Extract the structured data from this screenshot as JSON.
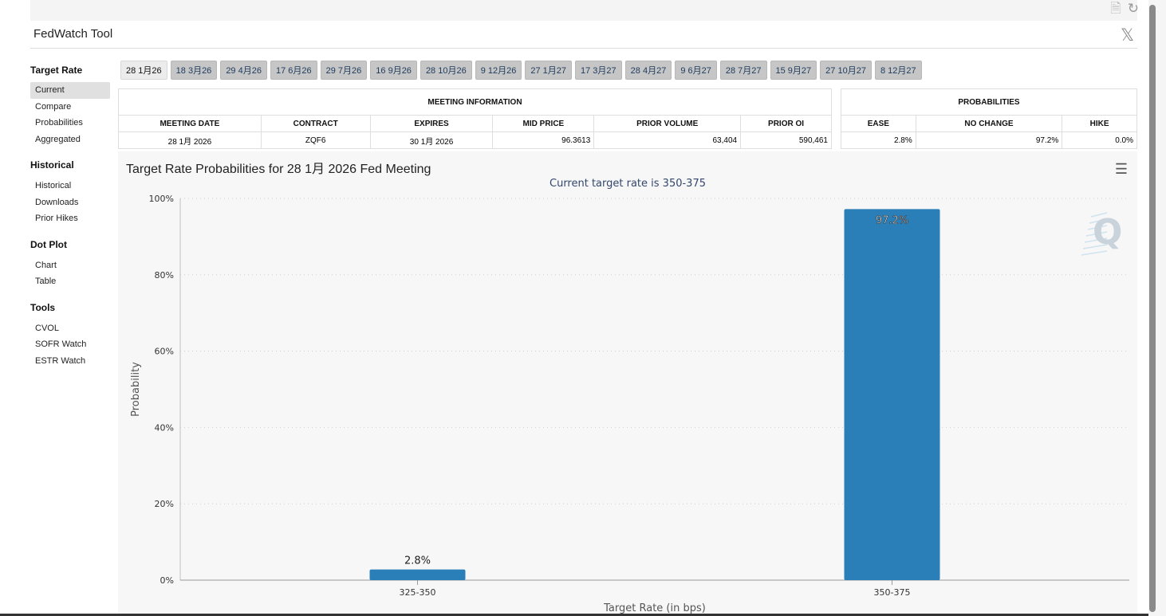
{
  "app": {
    "title": "FedWatch Tool",
    "close_glyph": "𝕏"
  },
  "top_icons": [
    "pdf-export-icon",
    "refresh-icon"
  ],
  "sidebar": [
    {
      "heading": "Target Rate",
      "items": [
        "Current",
        "Compare",
        "Probabilities",
        "Aggregated"
      ],
      "active": "Current"
    },
    {
      "heading": "Historical",
      "items": [
        "Historical",
        "Downloads",
        "Prior Hikes"
      ]
    },
    {
      "heading": "Dot Plot",
      "items": [
        "Chart",
        "Table"
      ]
    },
    {
      "heading": "Tools",
      "items": [
        "CVOL",
        "SOFR Watch",
        "ESTR Watch"
      ]
    }
  ],
  "tabs": [
    "28 1月26",
    "18 3月26",
    "29 4月26",
    "17 6月26",
    "29 7月26",
    "16 9月26",
    "28 10月26",
    "9 12月26",
    "27 1月27",
    "17 3月27",
    "28 4月27",
    "9 6月27",
    "28 7月27",
    "15 9月27",
    "27 10月27",
    "8 12月27"
  ],
  "active_tab": "28 1月26",
  "meeting_info": {
    "title": "MEETING INFORMATION",
    "headers": [
      "MEETING DATE",
      "CONTRACT",
      "EXPIRES",
      "MID PRICE",
      "PRIOR VOLUME",
      "PRIOR OI"
    ],
    "row": [
      "28 1月 2026",
      "ZQF6",
      "30 1月 2026",
      "96.3613",
      "63,404",
      "590,461"
    ]
  },
  "probabilities": {
    "title": "PROBABILITIES",
    "headers": [
      "EASE",
      "NO CHANGE",
      "HIKE"
    ],
    "row": [
      "2.8%",
      "97.2%",
      "0.0%"
    ]
  },
  "chart_data": {
    "type": "bar",
    "title": "Target Rate Probabilities for 28 1月 2026 Fed Meeting",
    "subtitle": "Current target rate is 350-375",
    "xlabel": "Target Rate (in bps)",
    "ylabel": "Probability",
    "categories": [
      "325-350",
      "350-375"
    ],
    "values": [
      2.8,
      97.2
    ],
    "data_labels": [
      "2.8%",
      "97.2%"
    ],
    "ylim": [
      0,
      100
    ],
    "yticks": [
      "0%",
      "20%",
      "40%",
      "60%",
      "80%",
      "100%"
    ],
    "ytick_values": [
      0,
      20,
      40,
      60,
      80,
      100
    ],
    "grid": true,
    "bar_color": "#2a7fb8",
    "menu_icon": "hamburger-menu-icon",
    "watermark": "Q"
  }
}
